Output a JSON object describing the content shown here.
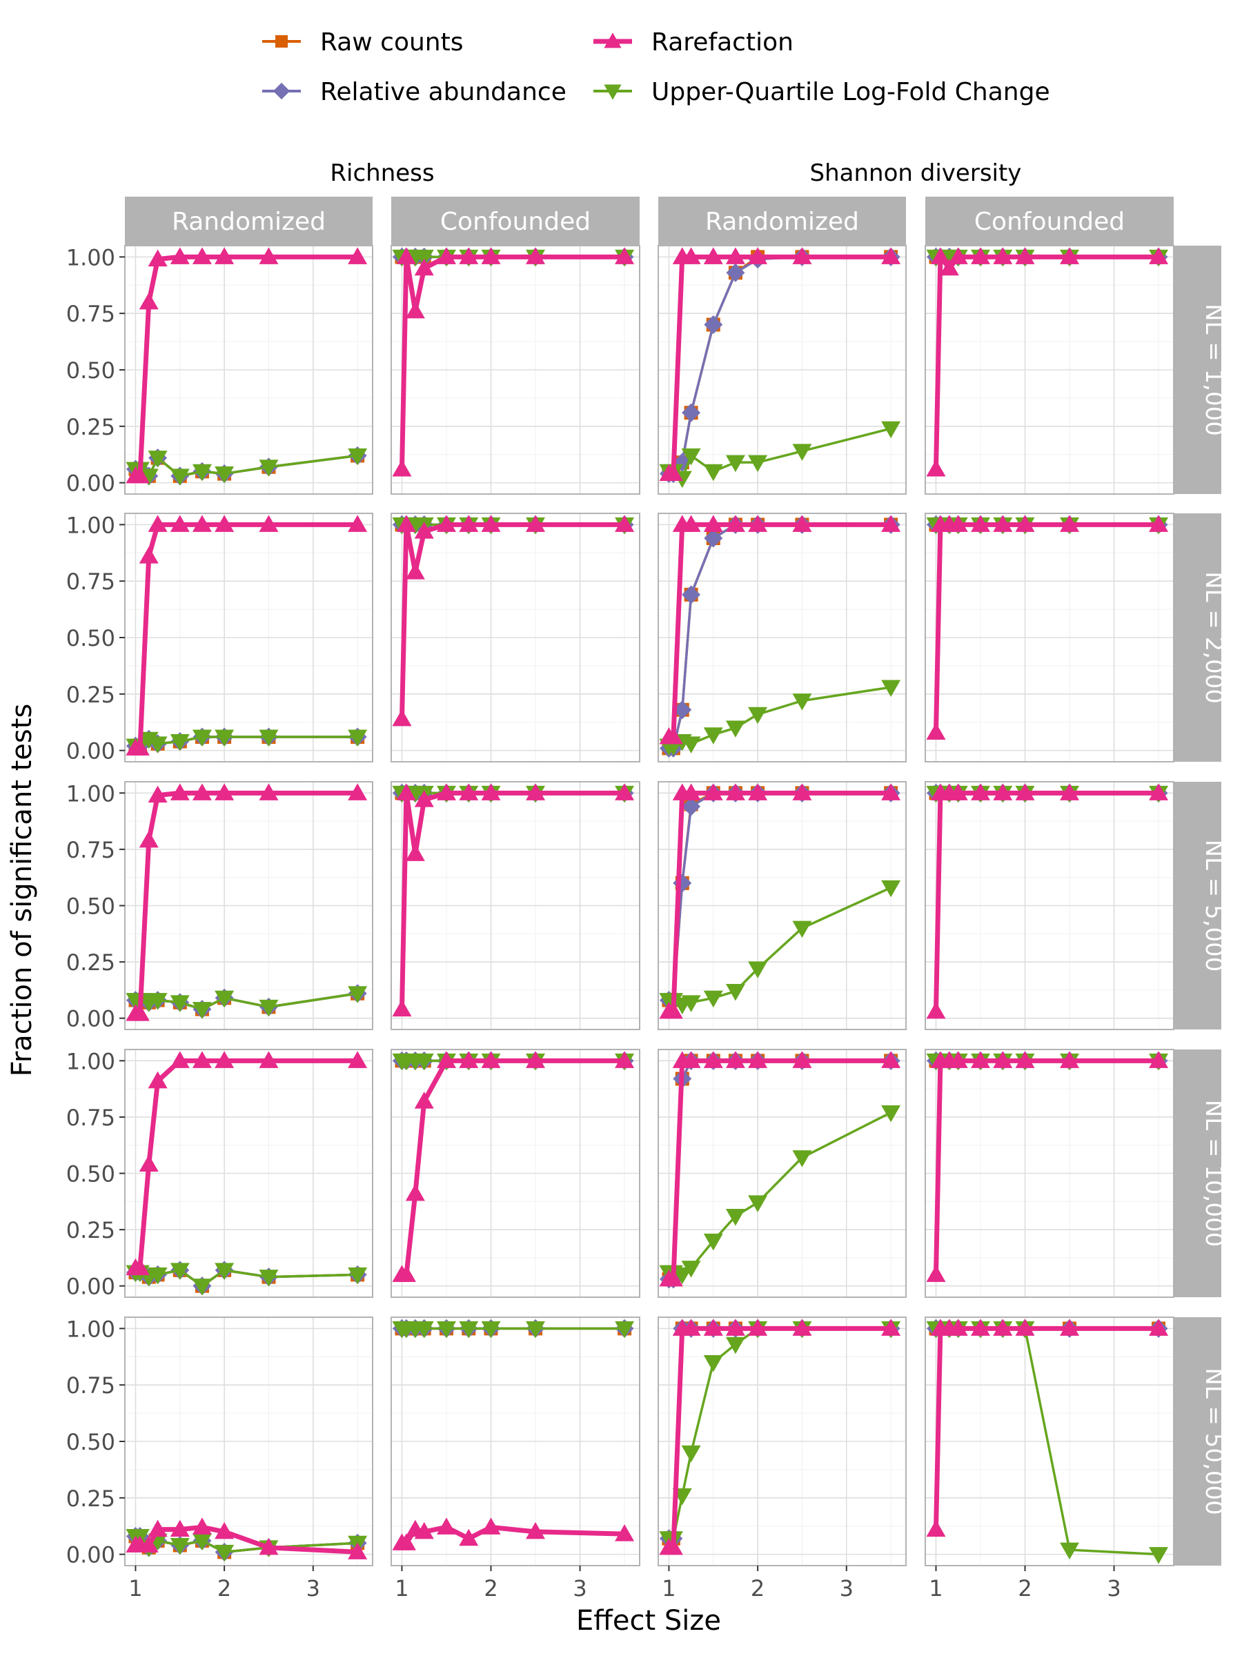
{
  "chart_data": {
    "type": "line",
    "xlabel": "Effect Size",
    "ylabel": "Fraction of significant tests",
    "x": [
      1.0,
      1.05,
      1.15,
      1.25,
      1.5,
      1.75,
      2.0,
      2.5,
      3.5
    ],
    "xlim": [
      0.88,
      3.67
    ],
    "xticks": [
      "1",
      "2",
      "3"
    ],
    "ylim": [
      -0.05,
      1.05
    ],
    "yticks": [
      "0.00",
      "0.25",
      "0.50",
      "0.75",
      "1.00"
    ],
    "grid": true,
    "legend_position": "top",
    "legend": [
      {
        "name": "Raw counts",
        "color": "#D95F02",
        "marker": "square"
      },
      {
        "name": "Rarefaction",
        "color": "#E7298A",
        "marker": "triangle-up"
      },
      {
        "name": "Relative abundance",
        "color": "#7570B3",
        "marker": "diamond"
      },
      {
        "name": "Upper-Quartile Log-Fold Change",
        "color": "#66A61E",
        "marker": "triangle-down"
      }
    ],
    "column_groups": [
      "Richness",
      "Shannon diversity"
    ],
    "column_strips": [
      "Randomized",
      "Confounded",
      "Randomized",
      "Confounded"
    ],
    "row_strips": [
      "ÑL = 1,000",
      "ÑL = 2,000",
      "ÑL = 5,000",
      "ÑL = 10,000",
      "ÑL = 50,000"
    ],
    "panels": [
      [
        {
          "series": {
            "Raw counts": [
              0.06,
              0.06,
              0.03,
              0.11,
              0.03,
              0.05,
              0.04,
              0.07,
              0.12
            ],
            "Relative abundance": [
              0.06,
              0.06,
              0.03,
              0.11,
              0.03,
              0.05,
              0.04,
              0.07,
              0.12
            ],
            "Upper-Quartile Log-Fold Change": [
              0.06,
              0.06,
              0.03,
              0.11,
              0.03,
              0.05,
              0.04,
              0.07,
              0.12
            ],
            "Rarefaction": [
              0.03,
              0.03,
              0.8,
              0.99,
              1.0,
              1.0,
              1.0,
              1.0,
              1.0
            ]
          }
        },
        {
          "series": {
            "Raw counts": [
              1,
              1,
              1,
              1,
              1,
              1,
              1,
              1,
              1
            ],
            "Relative abundance": [
              1,
              1,
              1,
              1,
              1,
              1,
              1,
              1,
              1
            ],
            "Upper-Quartile Log-Fold Change": [
              1,
              1,
              1,
              1,
              1,
              1,
              1,
              1,
              1
            ],
            "Rarefaction": [
              0.06,
              1.0,
              0.76,
              0.95,
              1.0,
              1.0,
              1.0,
              1.0,
              1.0
            ]
          }
        },
        {
          "series": {
            "Raw counts": [
              0.04,
              0.04,
              0.09,
              0.31,
              0.7,
              0.93,
              1.0,
              1.0,
              1.0
            ],
            "Relative abundance": [
              0.04,
              0.04,
              0.09,
              0.31,
              0.7,
              0.93,
              0.99,
              1.0,
              1.0
            ],
            "Upper-Quartile Log-Fold Change": [
              0.05,
              0.05,
              0.02,
              0.12,
              0.05,
              0.09,
              0.09,
              0.14,
              0.24
            ],
            "Rarefaction": [
              0.04,
              0.04,
              1.0,
              1.0,
              1.0,
              1.0,
              1.0,
              1.0,
              1.0
            ]
          }
        },
        {
          "series": {
            "Raw counts": [
              1,
              1,
              1,
              1,
              1,
              1,
              1,
              1,
              1
            ],
            "Relative abundance": [
              1,
              1,
              1,
              1,
              1,
              1,
              1,
              1,
              1
            ],
            "Upper-Quartile Log-Fold Change": [
              1,
              1,
              1,
              1,
              1,
              1,
              1,
              1,
              1
            ],
            "Rarefaction": [
              0.06,
              1.0,
              0.95,
              1.0,
              1.0,
              1.0,
              1.0,
              1.0,
              1.0
            ]
          }
        }
      ],
      [
        {
          "series": {
            "Raw counts": [
              0.02,
              0.02,
              0.05,
              0.03,
              0.04,
              0.06,
              0.06,
              0.06,
              0.06
            ],
            "Relative abundance": [
              0.02,
              0.02,
              0.05,
              0.03,
              0.04,
              0.06,
              0.06,
              0.06,
              0.06
            ],
            "Upper-Quartile Log-Fold Change": [
              0.02,
              0.02,
              0.05,
              0.03,
              0.04,
              0.06,
              0.06,
              0.06,
              0.06
            ],
            "Rarefaction": [
              0.01,
              0.01,
              0.86,
              1.0,
              1.0,
              1.0,
              1.0,
              1.0,
              1.0
            ]
          }
        },
        {
          "series": {
            "Raw counts": [
              1,
              1,
              1,
              1,
              1,
              1,
              1,
              1,
              1
            ],
            "Relative abundance": [
              1,
              1,
              1,
              1,
              1,
              1,
              1,
              1,
              1
            ],
            "Upper-Quartile Log-Fold Change": [
              1,
              1,
              1,
              1,
              1,
              1,
              1,
              1,
              1
            ],
            "Rarefaction": [
              0.14,
              1.0,
              0.79,
              0.97,
              1.0,
              1.0,
              1.0,
              1.0,
              1.0
            ]
          }
        },
        {
          "series": {
            "Raw counts": [
              0.01,
              0.01,
              0.18,
              0.69,
              0.94,
              1.0,
              1.0,
              1.0,
              1.0
            ],
            "Relative abundance": [
              0.01,
              0.01,
              0.18,
              0.69,
              0.94,
              1.0,
              1.0,
              1.0,
              1.0
            ],
            "Upper-Quartile Log-Fold Change": [
              0.02,
              0.02,
              0.04,
              0.03,
              0.07,
              0.1,
              0.16,
              0.22,
              0.28
            ],
            "Rarefaction": [
              0.06,
              0.06,
              1.0,
              1.0,
              1.0,
              1.0,
              1.0,
              1.0,
              1.0
            ]
          }
        },
        {
          "series": {
            "Raw counts": [
              1,
              1,
              1,
              1,
              1,
              1,
              1,
              1,
              1
            ],
            "Relative abundance": [
              1,
              1,
              1,
              1,
              1,
              1,
              1,
              1,
              1
            ],
            "Upper-Quartile Log-Fold Change": [
              1,
              1,
              1,
              1,
              1,
              1,
              1,
              1,
              1
            ],
            "Rarefaction": [
              0.08,
              1.0,
              1.0,
              1.0,
              1.0,
              1.0,
              1.0,
              1.0,
              1.0
            ]
          }
        }
      ],
      [
        {
          "series": {
            "Raw counts": [
              0.08,
              0.08,
              0.07,
              0.08,
              0.07,
              0.04,
              0.09,
              0.05,
              0.11
            ],
            "Relative abundance": [
              0.08,
              0.08,
              0.07,
              0.08,
              0.07,
              0.04,
              0.09,
              0.05,
              0.11
            ],
            "Upper-Quartile Log-Fold Change": [
              0.08,
              0.08,
              0.07,
              0.08,
              0.07,
              0.04,
              0.09,
              0.05,
              0.11
            ],
            "Rarefaction": [
              0.02,
              0.02,
              0.79,
              0.99,
              1.0,
              1.0,
              1.0,
              1.0,
              1.0
            ]
          }
        },
        {
          "series": {
            "Raw counts": [
              1,
              1,
              1,
              1,
              1,
              1,
              1,
              1,
              1
            ],
            "Relative abundance": [
              1,
              1,
              1,
              1,
              1,
              1,
              1,
              1,
              1
            ],
            "Upper-Quartile Log-Fold Change": [
              1,
              1,
              1,
              1,
              1,
              1,
              1,
              1,
              1
            ],
            "Rarefaction": [
              0.04,
              1.0,
              0.73,
              0.97,
              1.0,
              1.0,
              1.0,
              1.0,
              1.0
            ]
          }
        },
        {
          "series": {
            "Raw counts": [
              0.08,
              0.08,
              0.6,
              0.95,
              1.0,
              1.0,
              1.0,
              1.0,
              1.0
            ],
            "Relative abundance": [
              0.08,
              0.08,
              0.6,
              0.94,
              1.0,
              1.0,
              1.0,
              1.0,
              1.0
            ],
            "Upper-Quartile Log-Fold Change": [
              0.08,
              0.08,
              0.06,
              0.07,
              0.09,
              0.12,
              0.22,
              0.4,
              0.58
            ],
            "Rarefaction": [
              0.03,
              0.03,
              1.0,
              1.0,
              1.0,
              1.0,
              1.0,
              1.0,
              1.0
            ]
          }
        },
        {
          "series": {
            "Raw counts": [
              1,
              1,
              1,
              1,
              1,
              1,
              1,
              1,
              1
            ],
            "Relative abundance": [
              1,
              1,
              1,
              1,
              1,
              1,
              1,
              1,
              1
            ],
            "Upper-Quartile Log-Fold Change": [
              1,
              1,
              1,
              1,
              1,
              1,
              1,
              1,
              1
            ],
            "Rarefaction": [
              0.03,
              1.0,
              1.0,
              1.0,
              1.0,
              1.0,
              1.0,
              1.0,
              1.0
            ]
          }
        }
      ],
      [
        {
          "series": {
            "Raw counts": [
              0.06,
              0.06,
              0.04,
              0.05,
              0.07,
              0.0,
              0.07,
              0.04,
              0.05
            ],
            "Relative abundance": [
              0.06,
              0.06,
              0.04,
              0.05,
              0.07,
              0.0,
              0.07,
              0.04,
              0.05
            ],
            "Upper-Quartile Log-Fold Change": [
              0.06,
              0.06,
              0.04,
              0.05,
              0.07,
              0.0,
              0.07,
              0.04,
              0.05
            ],
            "Rarefaction": [
              0.08,
              0.08,
              0.54,
              0.91,
              1.0,
              1.0,
              1.0,
              1.0,
              1.0
            ]
          }
        },
        {
          "series": {
            "Raw counts": [
              1,
              1,
              1,
              1,
              1,
              1,
              1,
              1,
              1
            ],
            "Relative abundance": [
              1,
              1,
              1,
              1,
              1,
              1,
              1,
              1,
              1
            ],
            "Upper-Quartile Log-Fold Change": [
              1,
              1,
              1,
              1,
              1,
              1,
              1,
              1,
              1
            ],
            "Rarefaction": [
              0.05,
              0.05,
              0.41,
              0.82,
              1.0,
              1.0,
              1.0,
              1.0,
              1.0
            ]
          }
        },
        {
          "series": {
            "Raw counts": [
              0.03,
              0.03,
              0.92,
              1.0,
              1.0,
              1.0,
              1.0,
              1.0,
              1.0
            ],
            "Relative abundance": [
              0.03,
              0.03,
              0.92,
              1.0,
              1.0,
              1.0,
              1.0,
              1.0,
              1.0
            ],
            "Upper-Quartile Log-Fold Change": [
              0.06,
              0.06,
              0.05,
              0.08,
              0.2,
              0.31,
              0.37,
              0.57,
              0.77
            ],
            "Rarefaction": [
              0.03,
              0.03,
              1.0,
              1.0,
              1.0,
              1.0,
              1.0,
              1.0,
              1.0
            ]
          }
        },
        {
          "series": {
            "Raw counts": [
              1,
              1,
              1,
              1,
              1,
              1,
              1,
              1,
              1
            ],
            "Relative abundance": [
              1,
              1,
              1,
              1,
              1,
              1,
              1,
              1,
              1
            ],
            "Upper-Quartile Log-Fold Change": [
              1,
              1,
              1,
              1,
              1,
              1,
              1,
              1,
              1
            ],
            "Rarefaction": [
              0.05,
              1.0,
              1.0,
              1.0,
              1.0,
              1.0,
              1.0,
              1.0,
              1.0
            ]
          }
        }
      ],
      [
        {
          "series": {
            "Raw counts": [
              0.08,
              0.08,
              0.03,
              0.06,
              0.04,
              0.06,
              0.01,
              0.03,
              0.05
            ],
            "Relative abundance": [
              0.08,
              0.08,
              0.03,
              0.06,
              0.04,
              0.06,
              0.01,
              0.03,
              0.05
            ],
            "Upper-Quartile Log-Fold Change": [
              0.08,
              0.08,
              0.03,
              0.06,
              0.04,
              0.06,
              0.01,
              0.03,
              0.05
            ],
            "Rarefaction": [
              0.04,
              0.04,
              0.04,
              0.11,
              0.11,
              0.12,
              0.1,
              0.03,
              0.01
            ]
          }
        },
        {
          "series": {
            "Raw counts": [
              1,
              1,
              1,
              1,
              1,
              1,
              1,
              1,
              1
            ],
            "Relative abundance": [
              1,
              1,
              1,
              1,
              1,
              1,
              1,
              1,
              1
            ],
            "Upper-Quartile Log-Fold Change": [
              1,
              1,
              1,
              1,
              1,
              1,
              1,
              1,
              1
            ],
            "Rarefaction": [
              0.05,
              0.05,
              0.11,
              0.1,
              0.12,
              0.07,
              0.12,
              0.1,
              0.09
            ]
          }
        },
        {
          "series": {
            "Raw counts": [
              0.07,
              0.07,
              1.0,
              1.0,
              1.0,
              1.0,
              1.0,
              1.0,
              1.0
            ],
            "Relative abundance": [
              0.07,
              0.07,
              1.0,
              1.0,
              1.0,
              1.0,
              1.0,
              1.0,
              1.0
            ],
            "Upper-Quartile Log-Fold Change": [
              0.07,
              0.07,
              0.26,
              0.45,
              0.85,
              0.93,
              1.0,
              1.0,
              1.0
            ],
            "Rarefaction": [
              0.03,
              0.03,
              1.0,
              1.0,
              1.0,
              1.0,
              1.0,
              1.0,
              1.0
            ]
          }
        },
        {
          "series": {
            "Raw counts": [
              1,
              1,
              1,
              1,
              1,
              1,
              1,
              1,
              1
            ],
            "Relative abundance": [
              1,
              1,
              1,
              1,
              1,
              1,
              1,
              1,
              1
            ],
            "Upper-Quartile Log-Fold Change": [
              1,
              1,
              1,
              1,
              1,
              1,
              1.0,
              0.02,
              0.0
            ],
            "Rarefaction": [
              0.11,
              1.0,
              1.0,
              1.0,
              1.0,
              1.0,
              1.0,
              1.0,
              1.0
            ]
          }
        }
      ]
    ]
  }
}
